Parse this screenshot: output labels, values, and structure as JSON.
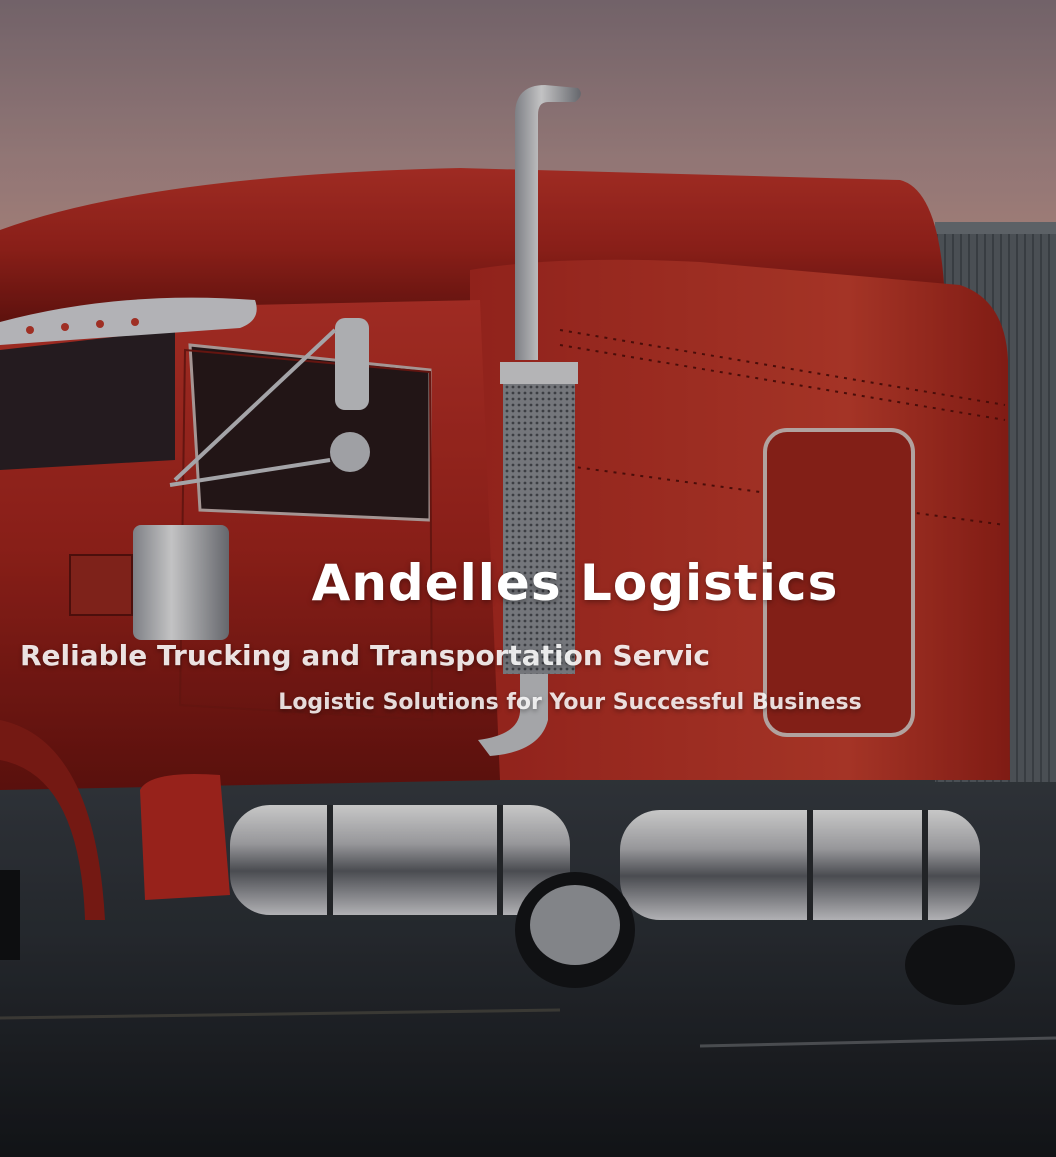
{
  "hero": {
    "title": "Andelles Logistics",
    "tagline": "Reliable Trucking and Transportation Servic",
    "subtitle": "Logistic Solutions for Your Successful Business",
    "background_image": "red-semi-truck-photo"
  },
  "colors": {
    "truck_red": "#b8281f",
    "sky": "#a3868a",
    "text": "#ffffff"
  }
}
